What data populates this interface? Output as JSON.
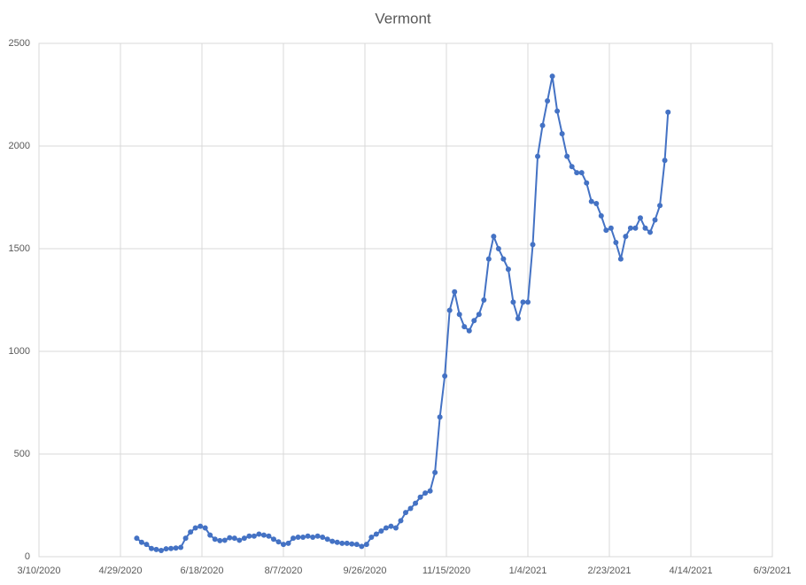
{
  "chart_data": {
    "type": "line",
    "title": "Vermont",
    "x": [
      "5/9/2020",
      "5/12/2020",
      "5/15/2020",
      "5/18/2020",
      "5/21/2020",
      "5/24/2020",
      "5/27/2020",
      "5/30/2020",
      "6/2/2020",
      "6/5/2020",
      "6/8/2020",
      "6/11/2020",
      "6/14/2020",
      "6/17/2020",
      "6/20/2020",
      "6/23/2020",
      "6/26/2020",
      "6/29/2020",
      "7/2/2020",
      "7/5/2020",
      "7/8/2020",
      "7/11/2020",
      "7/14/2020",
      "7/17/2020",
      "7/20/2020",
      "7/23/2020",
      "7/26/2020",
      "7/29/2020",
      "8/1/2020",
      "8/4/2020",
      "8/7/2020",
      "8/10/2020",
      "8/13/2020",
      "8/16/2020",
      "8/19/2020",
      "8/22/2020",
      "8/25/2020",
      "8/28/2020",
      "8/31/2020",
      "9/3/2020",
      "9/6/2020",
      "9/9/2020",
      "9/12/2020",
      "9/15/2020",
      "9/18/2020",
      "9/21/2020",
      "9/24/2020",
      "9/27/2020",
      "9/30/2020",
      "10/3/2020",
      "10/6/2020",
      "10/9/2020",
      "10/12/2020",
      "10/15/2020",
      "10/18/2020",
      "10/21/2020",
      "10/24/2020",
      "10/27/2020",
      "10/30/2020",
      "11/2/2020",
      "11/5/2020",
      "11/8/2020",
      "11/11/2020",
      "11/14/2020",
      "11/17/2020",
      "11/20/2020",
      "11/23/2020",
      "11/26/2020",
      "11/29/2020",
      "12/2/2020",
      "12/5/2020",
      "12/8/2020",
      "12/11/2020",
      "12/14/2020",
      "12/17/2020",
      "12/20/2020",
      "12/23/2020",
      "12/26/2020",
      "12/29/2020",
      "1/1/2021",
      "1/4/2021",
      "1/7/2021",
      "1/10/2021",
      "1/13/2021",
      "1/16/2021",
      "1/19/2021",
      "1/22/2021",
      "1/25/2021",
      "1/28/2021",
      "1/31/2021",
      "2/3/2021",
      "2/6/2021",
      "2/9/2021",
      "2/12/2021",
      "2/15/2021",
      "2/18/2021",
      "2/21/2021",
      "2/24/2021",
      "2/27/2021",
      "3/2/2021",
      "3/5/2021",
      "3/8/2021",
      "3/11/2021",
      "3/14/2021",
      "3/17/2021",
      "3/20/2021",
      "3/23/2021",
      "3/26/2021",
      "3/29/2021",
      "3/31/2021"
    ],
    "series": [
      {
        "name": "Vermont",
        "color": "#4472c4",
        "values": [
          90,
          70,
          60,
          40,
          35,
          30,
          38,
          40,
          42,
          45,
          90,
          120,
          140,
          148,
          140,
          105,
          85,
          78,
          80,
          92,
          90,
          80,
          90,
          100,
          100,
          110,
          105,
          100,
          85,
          72,
          60,
          65,
          90,
          95,
          95,
          100,
          95,
          100,
          95,
          85,
          75,
          70,
          65,
          65,
          62,
          60,
          50,
          60,
          95,
          110,
          125,
          140,
          148,
          140,
          175,
          215,
          235,
          260,
          290,
          310,
          320,
          410,
          680,
          880,
          1200,
          1290,
          1180,
          1120,
          1100,
          1150,
          1180,
          1250,
          1450,
          1560,
          1500,
          1450,
          1400,
          1240,
          1160,
          1240,
          1240,
          1520,
          1950,
          2100,
          2220,
          2340,
          2170,
          2060,
          1950,
          1900,
          1870,
          1870,
          1820,
          1730,
          1720,
          1660,
          1590,
          1600,
          1530,
          1450,
          1560,
          1600,
          1600,
          1650,
          1600,
          1580,
          1640,
          1710,
          1930,
          2165
        ]
      }
    ],
    "xlim": [
      "3/10/2020",
      "6/3/2021"
    ],
    "xticks": [
      "3/10/2020",
      "4/29/2020",
      "6/18/2020",
      "8/7/2020",
      "9/26/2020",
      "11/15/2020",
      "1/4/2021",
      "2/23/2021",
      "4/14/2021",
      "6/3/2021"
    ],
    "ylim": [
      0,
      2500
    ],
    "yticks": [
      0,
      500,
      1000,
      1500,
      2000,
      2500
    ],
    "grid": true
  }
}
